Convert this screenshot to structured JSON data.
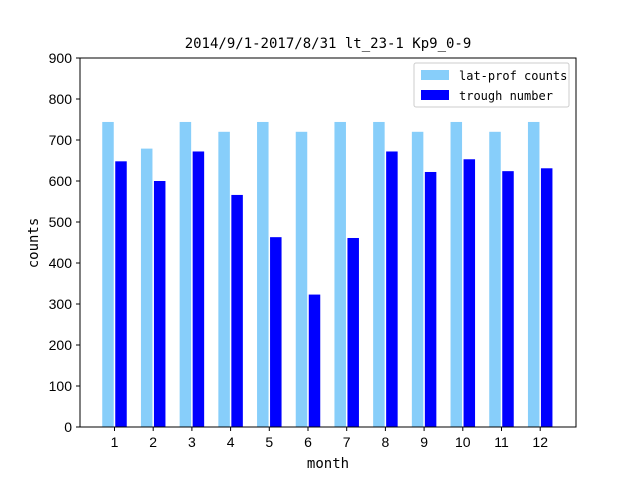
{
  "chart_data": {
    "type": "bar",
    "title": "2014/9/1-2017/8/31  lt_23-1  Kp9_0-9",
    "xlabel": "month",
    "ylabel": "counts",
    "categories": [
      "1",
      "2",
      "3",
      "4",
      "5",
      "6",
      "7",
      "8",
      "9",
      "10",
      "11",
      "12"
    ],
    "ylim": [
      0,
      900
    ],
    "yticks": [
      0,
      100,
      200,
      300,
      400,
      500,
      600,
      700,
      800,
      900
    ],
    "grid": false,
    "legend_position": "top-right",
    "series": [
      {
        "name": "lat-prof counts",
        "color": "#87cefa",
        "values": [
          744,
          679,
          744,
          720,
          744,
          720,
          744,
          744,
          720,
          744,
          720,
          744
        ]
      },
      {
        "name": "trough number",
        "color": "#0000ff",
        "values": [
          648,
          600,
          672,
          566,
          463,
          323,
          461,
          672,
          622,
          653,
          624,
          631
        ]
      }
    ]
  }
}
